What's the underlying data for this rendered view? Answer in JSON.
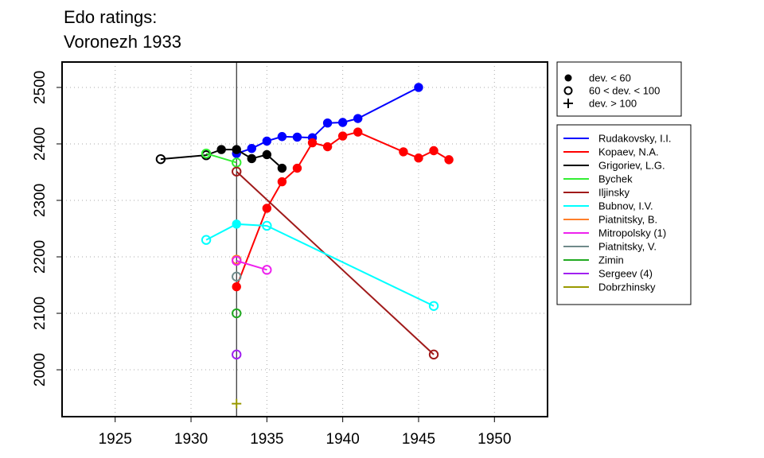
{
  "chart_data": {
    "type": "line",
    "title": [
      "Edo ratings:",
      "Voronezh 1933"
    ],
    "xlabel": "",
    "ylabel": "",
    "xlim": [
      1921.5,
      1953.5
    ],
    "ylim": [
      1917,
      2545
    ],
    "x_ticks": [
      "1925",
      "1930",
      "1935",
      "1940",
      "1945",
      "1950"
    ],
    "y_ticks": [
      "2000",
      "2100",
      "2200",
      "2300",
      "2400",
      "2500"
    ],
    "grid": true,
    "reference_line_x": 1933,
    "marker_legend": {
      "position": "top-right",
      "entries": [
        {
          "marker": "filled-circle",
          "label": "dev. < 60"
        },
        {
          "marker": "open-circle",
          "label": "60 < dev. < 100"
        },
        {
          "marker": "plus",
          "label": "dev. > 100"
        }
      ]
    },
    "legend_position": "right",
    "series": [
      {
        "name": "Rudakovsky, I.I.",
        "color": "#0000ff",
        "points": [
          {
            "x": 1933,
            "y": 2383,
            "m": "f"
          },
          {
            "x": 1934,
            "y": 2392,
            "m": "f"
          },
          {
            "x": 1935,
            "y": 2405,
            "m": "f"
          },
          {
            "x": 1936,
            "y": 2413,
            "m": "f"
          },
          {
            "x": 1937,
            "y": 2412,
            "m": "f"
          },
          {
            "x": 1938,
            "y": 2411,
            "m": "f"
          },
          {
            "x": 1939,
            "y": 2437,
            "m": "f"
          },
          {
            "x": 1940,
            "y": 2438,
            "m": "f"
          },
          {
            "x": 1941,
            "y": 2445,
            "m": "f"
          },
          {
            "x": 1945,
            "y": 2500,
            "m": "f"
          }
        ]
      },
      {
        "name": "Kopaev, N.A.",
        "color": "#ff0000",
        "points": [
          {
            "x": 1933,
            "y": 2147,
            "m": "f"
          },
          {
            "x": 1935,
            "y": 2286,
            "m": "f"
          },
          {
            "x": 1936,
            "y": 2333,
            "m": "f"
          },
          {
            "x": 1937,
            "y": 2357,
            "m": "f"
          },
          {
            "x": 1938,
            "y": 2402,
            "m": "f"
          },
          {
            "x": 1939,
            "y": 2395,
            "m": "f"
          },
          {
            "x": 1940,
            "y": 2414,
            "m": "f"
          },
          {
            "x": 1941,
            "y": 2421,
            "m": "f"
          },
          {
            "x": 1944,
            "y": 2386,
            "m": "f"
          },
          {
            "x": 1945,
            "y": 2375,
            "m": "f"
          },
          {
            "x": 1946,
            "y": 2388,
            "m": "f"
          },
          {
            "x": 1947,
            "y": 2372,
            "m": "f"
          }
        ]
      },
      {
        "name": "Grigoriev, L.G.",
        "color": "#000000",
        "points": [
          {
            "x": 1928,
            "y": 2373,
            "m": "o"
          },
          {
            "x": 1931,
            "y": 2380,
            "m": "o"
          },
          {
            "x": 1932,
            "y": 2390,
            "m": "f"
          },
          {
            "x": 1933,
            "y": 2390,
            "m": "f"
          },
          {
            "x": 1934,
            "y": 2374,
            "m": "f"
          },
          {
            "x": 1935,
            "y": 2381,
            "m": "f"
          },
          {
            "x": 1936,
            "y": 2357,
            "m": "f"
          }
        ]
      },
      {
        "name": "Bychek",
        "color": "#33ee33",
        "points": [
          {
            "x": 1931,
            "y": 2383,
            "m": "o"
          },
          {
            "x": 1933,
            "y": 2367,
            "m": "o"
          }
        ]
      },
      {
        "name": "Iljinsky",
        "color": "#a01a1a",
        "points": [
          {
            "x": 1933,
            "y": 2351,
            "m": "o"
          },
          {
            "x": 1946,
            "y": 2027,
            "m": "o"
          }
        ]
      },
      {
        "name": "Bubnov, I.V.",
        "color": "#00ffff",
        "points": [
          {
            "x": 1931,
            "y": 2230,
            "m": "o"
          },
          {
            "x": 1933,
            "y": 2258,
            "m": "f"
          },
          {
            "x": 1935,
            "y": 2255,
            "m": "o"
          },
          {
            "x": 1946,
            "y": 2113,
            "m": "o"
          }
        ]
      },
      {
        "name": "Piatnitsky, B.",
        "color": "#ff7f2a",
        "points": [
          {
            "x": 1933,
            "y": 2195,
            "m": "o"
          }
        ]
      },
      {
        "name": "Mitropolsky (1)",
        "color": "#ee22ee",
        "points": [
          {
            "x": 1933,
            "y": 2193,
            "m": "o"
          },
          {
            "x": 1935,
            "y": 2177,
            "m": "o"
          }
        ]
      },
      {
        "name": "Piatnitsky, V.",
        "color": "#6f8a8a",
        "points": [
          {
            "x": 1933,
            "y": 2165,
            "m": "o"
          }
        ]
      },
      {
        "name": "Zimin",
        "color": "#22aa22",
        "points": [
          {
            "x": 1933,
            "y": 2100,
            "m": "o"
          }
        ]
      },
      {
        "name": "Sergeev (4)",
        "color": "#a020f0",
        "points": [
          {
            "x": 1933,
            "y": 2027,
            "m": "o"
          }
        ]
      },
      {
        "name": "Dobrzhinsky",
        "color": "#999900",
        "points": [
          {
            "x": 1933,
            "y": 1940,
            "m": "p"
          }
        ]
      }
    ]
  }
}
